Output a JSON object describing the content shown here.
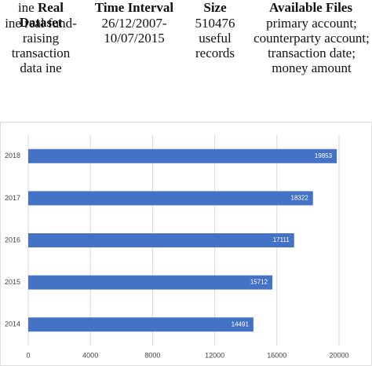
{
  "table": {
    "header": [
      [
        "ine",
        "Real Dataset"
      ],
      "Time Interval",
      "Size",
      "Available Files"
    ],
    "rows": [
      [
        "ine real fund-raising transaction data ine",
        "26/12/2007-10/07/2015",
        "510476 useful records",
        "primary account; counterparty account; transaction date; money amount"
      ]
    ]
  },
  "chart_data": {
    "type": "hbar",
    "categories": [
      "2018",
      "2017",
      "2016",
      "2015",
      "2014"
    ],
    "values": [
      19853,
      18322,
      17111,
      15712,
      14491
    ],
    "color": "#4472c4",
    "xlim": [
      0,
      20000
    ],
    "xticks": [
      0,
      4000,
      8000,
      12000,
      16000,
      20000
    ],
    "grid": true
  }
}
